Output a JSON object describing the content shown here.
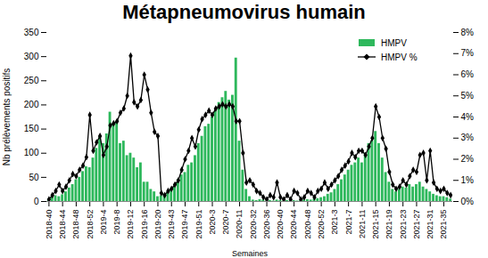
{
  "chart_data": {
    "type": "bar",
    "title": "Métapneumovirus humain",
    "x_label": "Semaines",
    "y_label": "Nb prélèvements positifs",
    "categories": [
      "2018-40",
      null,
      null,
      null,
      "2018-44",
      null,
      null,
      null,
      "2018-48",
      null,
      null,
      null,
      "2018-52",
      null,
      null,
      null,
      "2019-4",
      null,
      null,
      null,
      "2019-8",
      null,
      null,
      null,
      "2019-12",
      null,
      null,
      null,
      "2019-16",
      null,
      null,
      null,
      "2019-20",
      null,
      null,
      null,
      "2019-43",
      null,
      null,
      null,
      "2019-47",
      null,
      null,
      null,
      "2019-51",
      null,
      null,
      null,
      "2020-3",
      null,
      null,
      null,
      "2020-7",
      null,
      null,
      null,
      "2020-11",
      null,
      null,
      null,
      "2020-32",
      null,
      null,
      null,
      "2020-36",
      null,
      null,
      null,
      "2020-40",
      null,
      null,
      null,
      "2020-44",
      null,
      null,
      null,
      "2020-48",
      null,
      null,
      null,
      "2020-52",
      null,
      null,
      null,
      "2021-3",
      null,
      null,
      null,
      "2021-7",
      null,
      null,
      null,
      "2021-11",
      null,
      null,
      null,
      "2021-15",
      null,
      null,
      null,
      "2021-19",
      null,
      null,
      null,
      "2021-23",
      null,
      null,
      null,
      "2021-27",
      null,
      null,
      null,
      "2021-31",
      null,
      null,
      null,
      "2021-35",
      null,
      null
    ],
    "series": [
      {
        "name": "HMPV",
        "type": "bar",
        "color": "#2eb85c",
        "values": [
          5,
          8,
          12,
          10,
          14,
          20,
          28,
          35,
          45,
          50,
          62,
          72,
          70,
          90,
          110,
          135,
          120,
          140,
          185,
          160,
          165,
          120,
          125,
          95,
          100,
          90,
          70,
          80,
          40,
          40,
          25,
          20,
          10,
          12,
          15,
          20,
          25,
          30,
          45,
          55,
          60,
          75,
          80,
          95,
          120,
          135,
          155,
          160,
          175,
          190,
          205,
          215,
          228,
          210,
          220,
          297,
          125,
          65,
          25,
          10,
          3,
          2,
          4,
          3,
          1,
          2,
          1,
          3,
          2,
          1,
          2,
          3,
          2,
          1,
          2,
          3,
          4,
          3,
          5,
          6,
          8,
          10,
          15,
          18,
          25,
          35,
          45,
          55,
          65,
          75,
          80,
          90,
          80,
          100,
          120,
          125,
          145,
          120,
          90,
          60,
          40,
          25,
          20,
          25,
          30,
          28,
          35,
          30,
          35,
          40,
          30,
          25,
          20,
          15,
          12,
          10,
          10,
          8,
          5
        ]
      },
      {
        "name": "HMPV %",
        "type": "line",
        "axis": "y2",
        "color": "#000000",
        "marker": "diamond",
        "values": [
          0.1,
          0.3,
          0.5,
          0.8,
          0.5,
          0.7,
          1.0,
          1.3,
          1.2,
          1.5,
          1.7,
          2.1,
          4.1,
          2.4,
          2.8,
          3.1,
          2.2,
          2.6,
          3.6,
          3.7,
          3.8,
          4.2,
          4.4,
          5.0,
          6.9,
          4.7,
          4.5,
          4.8,
          6.0,
          5.3,
          4.2,
          3.3,
          3.1,
          0.4,
          0.3,
          0.5,
          0.6,
          0.8,
          1.0,
          1.5,
          2.0,
          2.4,
          3.0,
          2.6,
          3.4,
          3.9,
          4.1,
          4.3,
          4.1,
          4.4,
          4.5,
          4.6,
          4.5,
          4.6,
          4.5,
          3.8,
          3.8,
          2.3,
          0.9,
          1.0,
          0.8,
          0.5,
          0.4,
          0.2,
          0.1,
          0.3,
          0.2,
          0.9,
          0.2,
          0.1,
          0.3,
          0.1,
          0.5,
          0.4,
          0.1,
          0.2,
          0.5,
          0.4,
          0.2,
          0.5,
          0.6,
          0.9,
          0.6,
          0.8,
          1.0,
          1.2,
          1.5,
          1.7,
          1.9,
          2.3,
          2.1,
          2.4,
          2.4,
          2.2,
          2.6,
          3.0,
          4.5,
          4.0,
          3.0,
          2.5,
          1.4,
          0.8,
          0.6,
          0.7,
          1.0,
          0.8,
          1.2,
          1.5,
          1.4,
          2.2,
          2.3,
          1.0,
          2.4,
          0.9,
          0.6,
          0.5,
          0.6,
          0.4,
          0.3
        ]
      }
    ],
    "ylim": [
      0,
      350
    ],
    "yticks": [
      0,
      50,
      100,
      150,
      200,
      250,
      300,
      350
    ],
    "y2lim": [
      0,
      8
    ],
    "y2ticks": [
      {
        "value": 0,
        "label": "0%"
      },
      {
        "value": 1,
        "label": "1%"
      },
      {
        "value": 2,
        "label": "2%"
      },
      {
        "value": 3,
        "label": "3%"
      },
      {
        "value": 4,
        "label": "4%"
      },
      {
        "value": 5,
        "label": "5%"
      },
      {
        "value": 6,
        "label": "6%"
      },
      {
        "value": 7,
        "label": "7%"
      },
      {
        "value": 8,
        "label": "8%"
      }
    ],
    "legend": "top-right"
  }
}
